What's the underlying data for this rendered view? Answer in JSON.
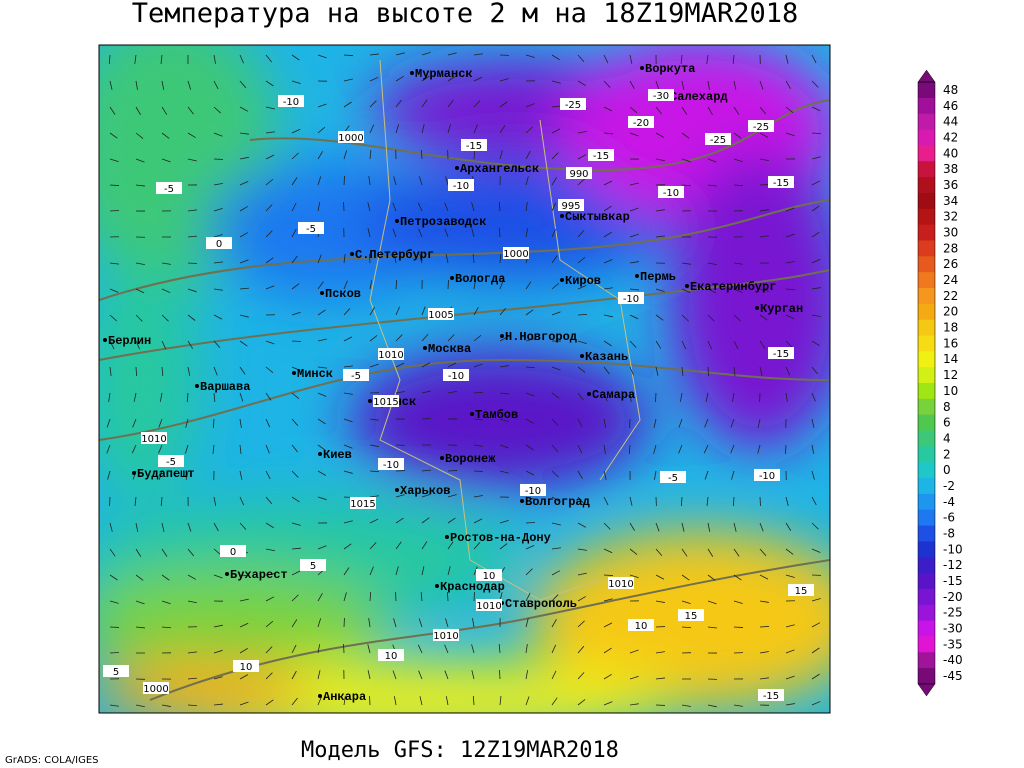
{
  "title": "Температура на высоте 2 м на 18Z19MAR2018",
  "subtitle": "Модель GFS: 12Z19MAR2018",
  "credit": "GrADS: COLA/IGES",
  "cities": [
    "Мурманск",
    "Воркута",
    "Салехард",
    "Архангельск",
    "Петрозаводск",
    "Сыктывкар",
    "С.Петербург",
    "Вологда",
    "Киров",
    "Пермь",
    "Екатеринбург",
    "Курган",
    "Псков",
    "Берлин",
    "Москва",
    "Н.Новгород",
    "Казань",
    "Минск",
    "Варшава",
    "Самара",
    "Брянск",
    "Тамбов",
    "Киев",
    "Воронеж",
    "Будапешт",
    "Харьков",
    "Волгоград",
    "Ростов-на-Дону",
    "Бухарест",
    "Краснодар",
    "Ставрополь",
    "Анкара"
  ],
  "contour_labels": [
    -10,
    -5,
    0,
    -15,
    -25,
    -30,
    -20,
    -25,
    -25,
    -15,
    -10,
    -15,
    -10,
    990,
    995,
    1000,
    1000,
    1005,
    1010,
    1015,
    1010,
    1015,
    -5,
    -10,
    -15,
    -10,
    -5,
    -10,
    10,
    1010,
    1010,
    1010,
    1000,
    10,
    15,
    10,
    15,
    5,
    0,
    -15,
    -10,
    -5,
    5,
    10,
    -5,
    -10
  ],
  "colorbar": {
    "values": [
      48,
      46,
      44,
      42,
      40,
      38,
      36,
      34,
      32,
      30,
      28,
      26,
      24,
      22,
      20,
      18,
      16,
      14,
      12,
      10,
      8,
      6,
      4,
      2,
      0,
      -2,
      -4,
      -6,
      -8,
      -10,
      -12,
      -15,
      -20,
      -25,
      -30,
      -35,
      -40,
      -45
    ],
    "colors": [
      "#7a0a7a",
      "#a0109a",
      "#c01aa8",
      "#d81ab0",
      "#e81e8c",
      "#c8143c",
      "#b0101e",
      "#a00c14",
      "#b41414",
      "#c81e1e",
      "#dc3c1e",
      "#e65a1e",
      "#f0781e",
      "#f5961e",
      "#f5aa14",
      "#f5c814",
      "#f5dc14",
      "#f0f014",
      "#d2f014",
      "#a0e614",
      "#78d23c",
      "#50c850",
      "#3cc878",
      "#28c8a0",
      "#1ec8c8",
      "#1eb4e6",
      "#1e96f0",
      "#1e78f0",
      "#1e50e6",
      "#1e32d2",
      "#3c1ec8",
      "#5a14c8",
      "#7814d2",
      "#9a14dc",
      "#c814e6",
      "#e014d2",
      "#a0149a",
      "#780a78"
    ]
  }
}
